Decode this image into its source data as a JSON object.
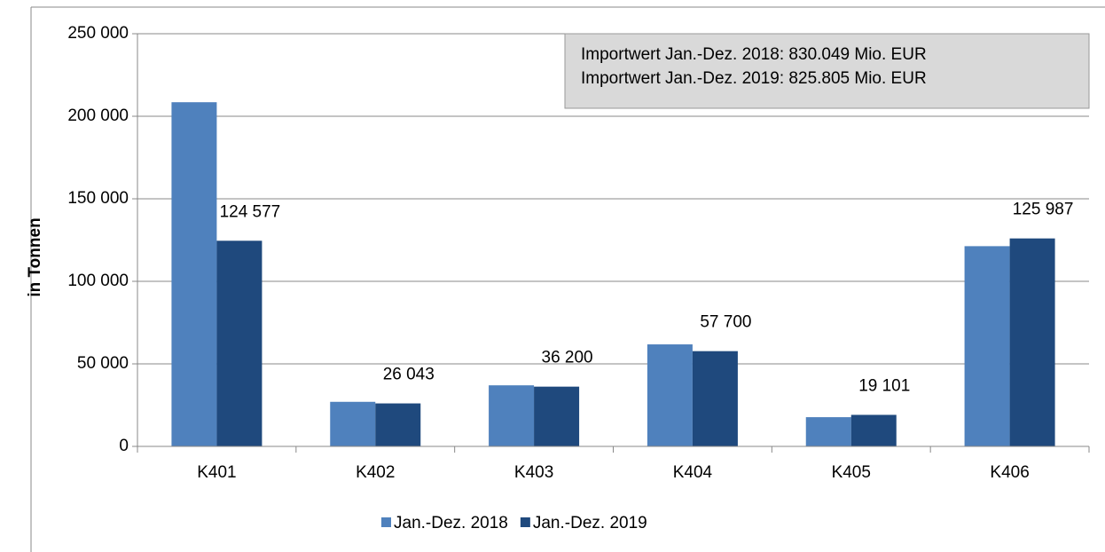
{
  "chart_data": {
    "type": "bar",
    "annotations": [
      "Importwert Jan.-Dez. 2018: 830.049 Mio. EUR",
      "Importwert Jan.-Dez. 2019: 825.805 Mio. EUR"
    ],
    "y_label": "in Tonnen",
    "categories": [
      "K401",
      "K402",
      "K403",
      "K404",
      "K405",
      "K406"
    ],
    "series": [
      {
        "name": "Jan.-Dez. 2018",
        "color": "#4f81bd",
        "values": [
          208500,
          27000,
          37000,
          61800,
          17700,
          121300
        ]
      },
      {
        "name": "Jan.-Dez. 2019",
        "color": "#1f497d",
        "values": [
          124577,
          26043,
          36200,
          57700,
          19101,
          125987
        ],
        "value_labels": [
          "124 577",
          "26 043",
          "36 200",
          "57 700",
          "19 101",
          "125 987"
        ]
      }
    ],
    "ylim": [
      0,
      250000
    ],
    "yticks": [
      0,
      {
        "value": 50000,
        "label": "50 000"
      },
      {
        "value": 100000,
        "label": "100 000"
      },
      {
        "value": 150000,
        "label": "150 000"
      },
      {
        "value": 200000,
        "label": "200 000"
      },
      {
        "value": 250000,
        "label": "250 000"
      }
    ],
    "grid": true,
    "legend": "bottom"
  }
}
